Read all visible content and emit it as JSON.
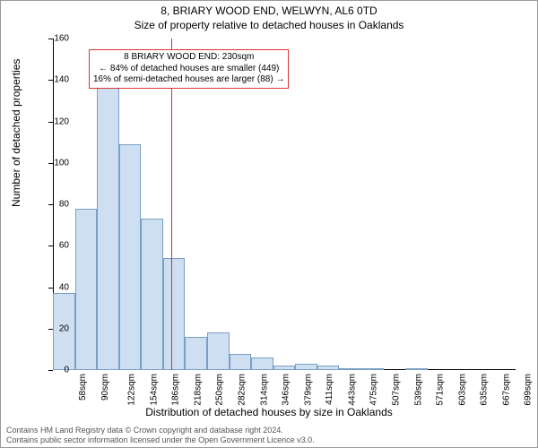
{
  "title_line1": "8, BRIARY WOOD END, WELWYN, AL6 0TD",
  "title_line2": "Size of property relative to detached houses in Oaklands",
  "y_axis_label": "Number of detached properties",
  "x_axis_label": "Distribution of detached houses by size in Oaklands",
  "footer_line1": "Contains HM Land Registry data © Crown copyright and database right 2024.",
  "footer_line2": "Contains public sector information licensed under the Open Government Licence v3.0.",
  "annotation": {
    "line1": "8 BRIARY WOOD END: 230sqm",
    "line2": "← 84% of detached houses are smaller (449)",
    "line3": "16% of semi-detached houses are larger (88) →"
  },
  "chart": {
    "type": "histogram",
    "ylim": [
      0,
      160
    ],
    "ytick_step": 20,
    "bar_fill": "#cedff2",
    "bar_stroke": "#7a9fc4",
    "marker_x_value": 230,
    "marker_color": "#d33333",
    "x_start": 58,
    "x_step": 32,
    "bars": [
      {
        "x": 58,
        "value": 37
      },
      {
        "x": 90,
        "value": 78
      },
      {
        "x": 122,
        "value": 142
      },
      {
        "x": 154,
        "value": 109
      },
      {
        "x": 186,
        "value": 73
      },
      {
        "x": 218,
        "value": 54
      },
      {
        "x": 250,
        "value": 16
      },
      {
        "x": 282,
        "value": 18
      },
      {
        "x": 314,
        "value": 8
      },
      {
        "x": 346,
        "value": 6
      },
      {
        "x": 379,
        "value": 2
      },
      {
        "x": 411,
        "value": 3
      },
      {
        "x": 443,
        "value": 2
      },
      {
        "x": 475,
        "value": 1
      },
      {
        "x": 507,
        "value": 1
      },
      {
        "x": 539,
        "value": 0
      },
      {
        "x": 571,
        "value": 1
      },
      {
        "x": 603,
        "value": 0
      },
      {
        "x": 635,
        "value": 0
      },
      {
        "x": 667,
        "value": 0
      },
      {
        "x": 699,
        "value": 0
      }
    ],
    "x_tick_suffix": "sqm",
    "background_color": "#ffffff"
  }
}
